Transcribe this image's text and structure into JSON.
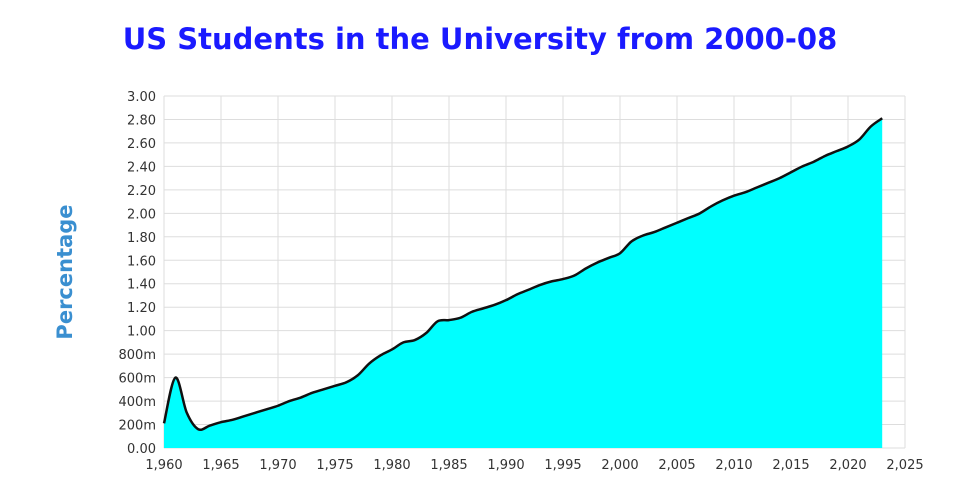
{
  "chart_data": {
    "type": "area",
    "title": "US Students in the University from 2000-08",
    "xlabel": "",
    "ylabel": "Percentage",
    "xlim": [
      1960,
      2025
    ],
    "ylim": [
      0,
      3.0
    ],
    "x_ticks": [
      1960,
      1965,
      1970,
      1975,
      1980,
      1985,
      1990,
      1995,
      2000,
      2005,
      2010,
      2015,
      2020,
      2025
    ],
    "x_tick_labels": [
      "1,960",
      "1,965",
      "1,970",
      "1,975",
      "1,980",
      "1,985",
      "1,990",
      "1,995",
      "2,000",
      "2,005",
      "2,010",
      "2,015",
      "2,020",
      "2,025"
    ],
    "y_ticks": [
      0,
      0.2,
      0.4,
      0.6,
      0.8,
      1.0,
      1.2,
      1.4,
      1.6,
      1.8,
      2.0,
      2.2,
      2.4,
      2.6,
      2.8,
      3.0
    ],
    "y_tick_labels": [
      "0.00",
      "200m",
      "400m",
      "600m",
      "800m",
      "1.00",
      "1.20",
      "1.40",
      "1.60",
      "1.80",
      "2.00",
      "2.20",
      "2.40",
      "2.60",
      "2.80",
      "3.00"
    ],
    "grid": true,
    "legend": "none",
    "series": [
      {
        "x": [
          1960,
          1961,
          1962,
          1963,
          1964,
          1965,
          1966,
          1967,
          1968,
          1969,
          1970,
          1971,
          1972,
          1973,
          1974,
          1975,
          1976,
          1977,
          1978,
          1979,
          1980,
          1981,
          1982,
          1983,
          1984,
          1985,
          1986,
          1987,
          1988,
          1989,
          1990,
          1991,
          1992,
          1993,
          1994,
          1995,
          1996,
          1997,
          1998,
          1999,
          2000,
          2001,
          2002,
          2003,
          2004,
          2005,
          2006,
          2007,
          2008,
          2009,
          2010,
          2011,
          2012,
          2013,
          2014,
          2015,
          2016,
          2017,
          2018,
          2019,
          2020,
          2021,
          2022,
          2023
        ],
        "values": [
          0.21,
          0.6,
          0.3,
          0.16,
          0.19,
          0.22,
          0.24,
          0.27,
          0.3,
          0.33,
          0.36,
          0.4,
          0.43,
          0.47,
          0.5,
          0.53,
          0.56,
          0.62,
          0.72,
          0.79,
          0.84,
          0.9,
          0.92,
          0.98,
          1.08,
          1.09,
          1.11,
          1.16,
          1.19,
          1.22,
          1.26,
          1.31,
          1.35,
          1.39,
          1.42,
          1.44,
          1.47,
          1.53,
          1.58,
          1.62,
          1.66,
          1.76,
          1.81,
          1.84,
          1.88,
          1.92,
          1.96,
          2.0,
          2.06,
          2.11,
          2.15,
          2.18,
          2.22,
          2.26,
          2.3,
          2.35,
          2.4,
          2.44,
          2.49,
          2.53,
          2.57,
          2.63,
          2.74,
          2.81
        ],
        "fill_color": "#00ffff",
        "line_color": "#111111"
      }
    ]
  },
  "colors": {
    "title": "#1a1aff",
    "ylabel": "#3a8fd0",
    "grid": "#dddddd",
    "fill": "#00ffff",
    "line": "#111111"
  }
}
